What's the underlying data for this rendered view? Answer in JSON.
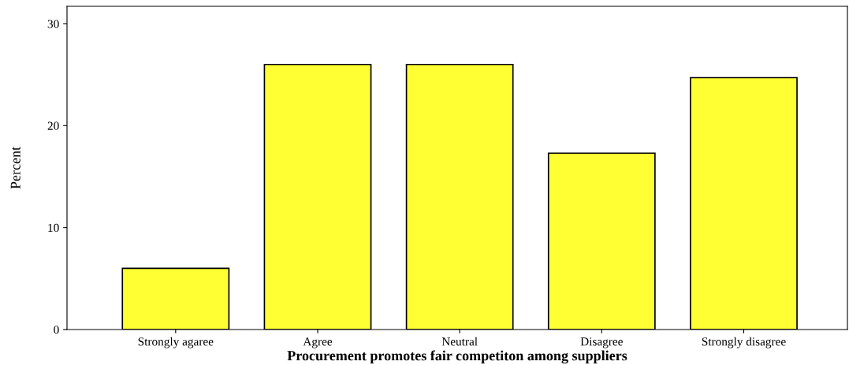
{
  "chart_data": {
    "type": "bar",
    "categories": [
      "Strongly agaree",
      "Agree",
      "Neutral",
      "Disagree",
      "Strongly disagree"
    ],
    "values": [
      6.0,
      26.0,
      26.0,
      17.3,
      24.7
    ],
    "color": "#ffff33",
    "xlabel": "Procurement promotes fair competiton among suppliers",
    "ylabel": "Percent",
    "ylim": [
      0,
      31.7
    ],
    "yticks": [
      0,
      10,
      20,
      30
    ],
    "grid": false
  }
}
